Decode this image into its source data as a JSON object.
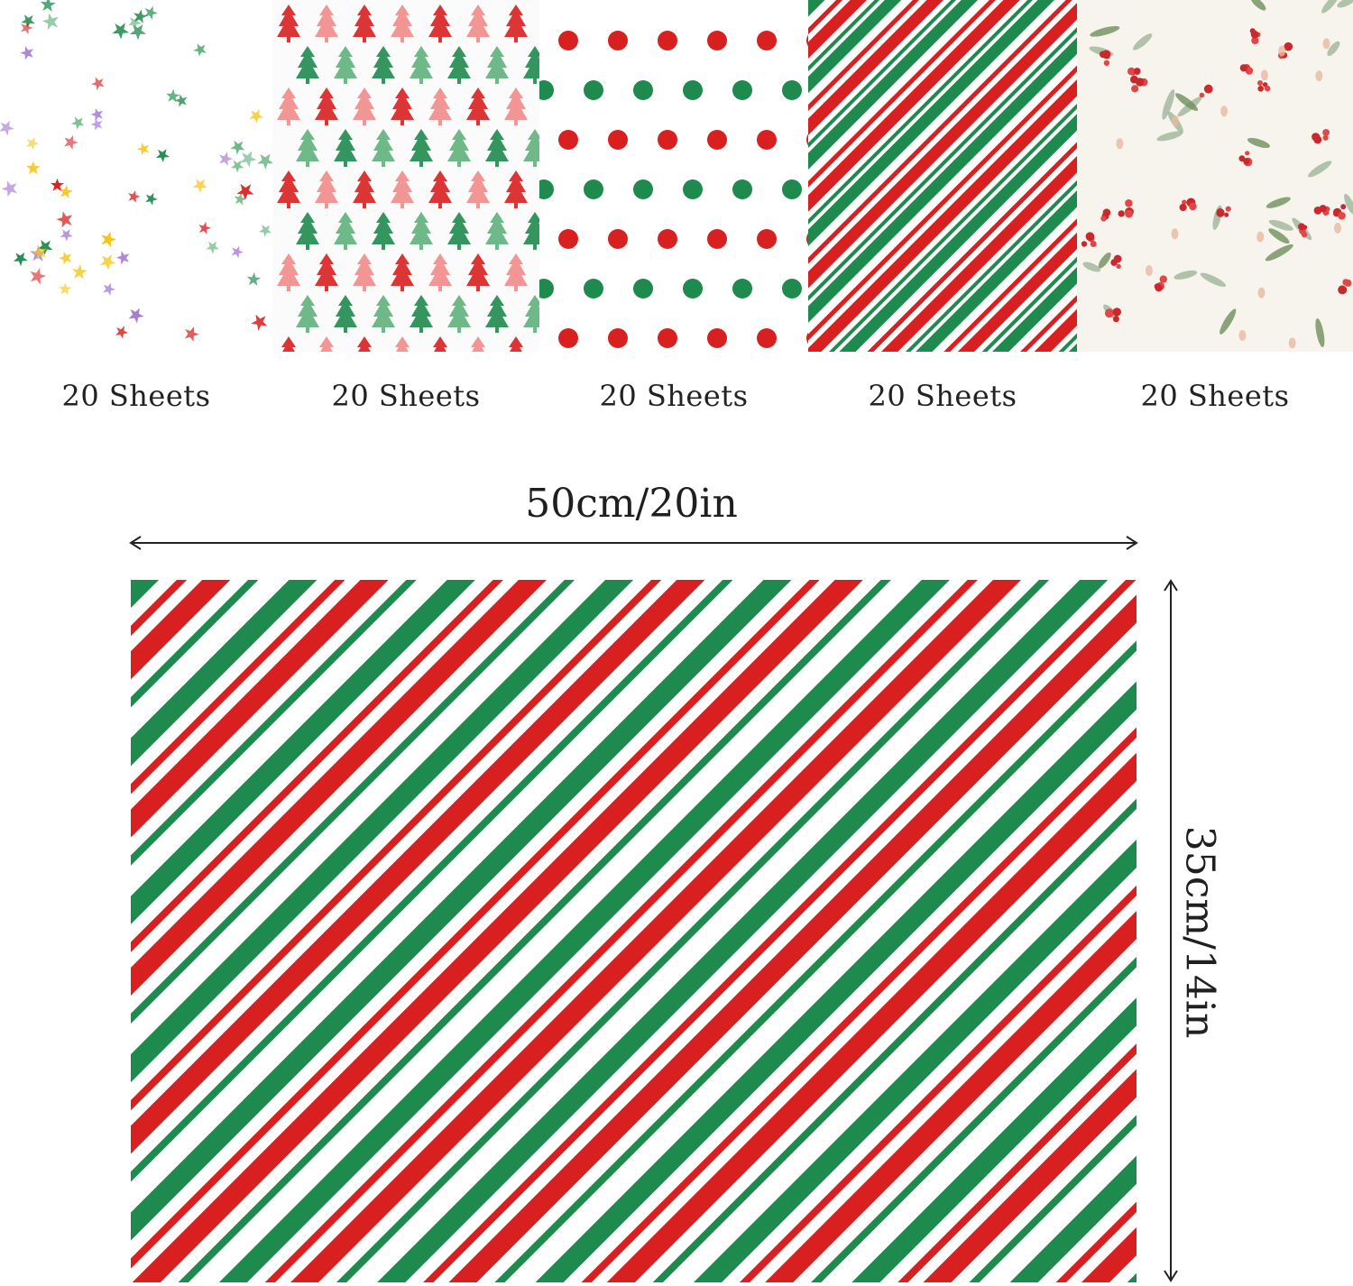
{
  "swatches": [
    {
      "pattern": "stars",
      "caption": "20 Sheets"
    },
    {
      "pattern": "trees",
      "caption": "20 Sheets"
    },
    {
      "pattern": "polka-dots",
      "caption": "20 Sheets"
    },
    {
      "pattern": "stripes",
      "caption": "20 Sheets"
    },
    {
      "pattern": "holly-floral",
      "caption": "20 Sheets"
    }
  ],
  "dimensions": {
    "width_label": "50cm/20in",
    "height_label": "35cm/14in"
  },
  "colors": {
    "red": "#d7201f",
    "green": "#1f8a4d",
    "pink": "#f08a8a",
    "light_green": "#5fb07a",
    "yellow": "#f5c518",
    "purple": "#a57bd4",
    "white": "#ffffff"
  }
}
